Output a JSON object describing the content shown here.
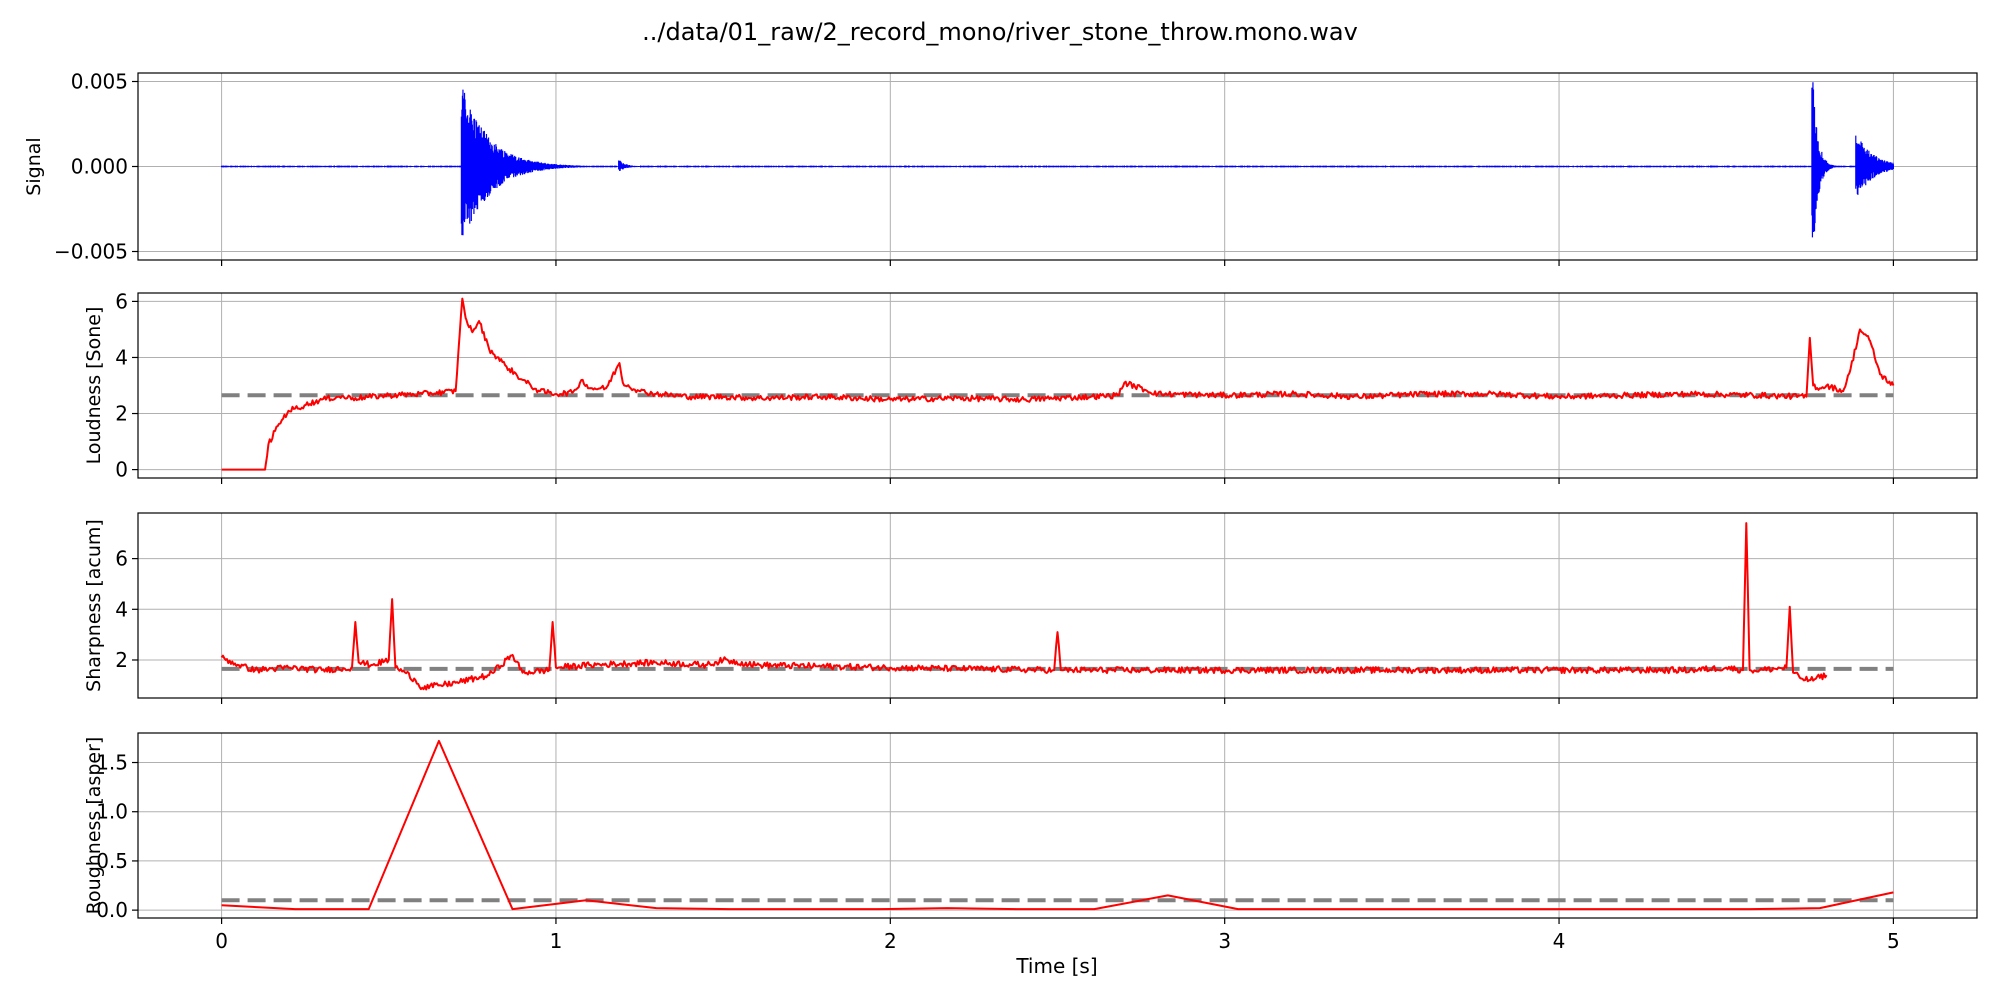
{
  "chart_data": {
    "title": "../data/01_raw/2_record_mono/river_stone_throw.mono.wav",
    "xlabel": "Time [s]",
    "x_ticks": [
      0,
      1,
      2,
      3,
      4,
      5
    ],
    "x_tick_labels": [
      "0",
      "1",
      "2",
      "3",
      "4",
      "5"
    ],
    "xlim": [
      -0.25,
      5.25
    ],
    "grid": true,
    "panels": [
      {
        "type": "line",
        "ylabel": "Signal",
        "ylim": [
          -0.0055,
          0.0055
        ],
        "y_ticks": [
          -0.005,
          0.0,
          0.005
        ],
        "y_tick_labels": [
          "−0.005",
          "0.000",
          "0.005"
        ],
        "series": [
          {
            "color": "#0000ff",
            "style": "waveform",
            "baseline_amplitude": 4e-05,
            "events": [
              {
                "t": 0.72,
                "peak": 0.0048,
                "trough": -0.0047,
                "decay": 0.08
              },
              {
                "t": 1.19,
                "peak": 0.0004,
                "trough": -0.0003,
                "decay": 0.02
              },
              {
                "t": 4.76,
                "peak": 0.005,
                "trough": -0.0051,
                "decay": 0.015
              },
              {
                "t": 4.89,
                "peak": 0.002,
                "trough": -0.0019,
                "decay": 0.05
              }
            ]
          }
        ]
      },
      {
        "type": "line",
        "ylabel": "Loudness [Sone]",
        "ylim": [
          -0.3,
          6.3
        ],
        "y_ticks": [
          0,
          2,
          4,
          6
        ],
        "y_tick_labels": [
          "0",
          "2",
          "4",
          "6"
        ],
        "mean": 2.65,
        "series": [
          {
            "color": "#ff0000",
            "x": [
              0,
              0.13,
              0.14,
              0.17,
              0.2,
              0.25,
              0.3,
              0.35,
              0.4,
              0.5,
              0.6,
              0.7,
              0.71,
              0.72,
              0.73,
              0.75,
              0.77,
              0.8,
              0.85,
              0.9,
              0.95,
              1.0,
              1.05,
              1.08,
              1.1,
              1.15,
              1.19,
              1.2,
              1.25,
              1.3,
              1.4,
              1.5,
              1.6,
              1.8,
              2.0,
              2.2,
              2.4,
              2.6,
              2.68,
              2.7,
              2.8,
              3.0,
              3.2,
              3.4,
              3.6,
              3.8,
              4.0,
              4.2,
              4.4,
              4.6,
              4.74,
              4.75,
              4.76,
              4.78,
              4.8,
              4.85,
              4.87,
              4.9,
              4.93,
              4.96,
              5.0
            ],
            "y": [
              0,
              0,
              0.9,
              1.6,
              2.1,
              2.3,
              2.5,
              2.6,
              2.55,
              2.65,
              2.7,
              2.8,
              4.5,
              6.1,
              5.4,
              4.9,
              5.3,
              4.3,
              3.7,
              3.2,
              2.8,
              2.7,
              2.75,
              3.2,
              2.9,
              2.9,
              3.8,
              3.1,
              2.8,
              2.7,
              2.6,
              2.6,
              2.55,
              2.6,
              2.5,
              2.55,
              2.5,
              2.6,
              2.65,
              3.1,
              2.7,
              2.65,
              2.7,
              2.6,
              2.7,
              2.7,
              2.6,
              2.65,
              2.7,
              2.65,
              2.6,
              4.7,
              3.0,
              2.9,
              3.0,
              2.8,
              3.5,
              5.0,
              4.6,
              3.4,
              3.0
            ],
            "noise": 0.1
          }
        ]
      },
      {
        "type": "line",
        "ylabel": "Sharpness [acum]",
        "ylim": [
          0.5,
          7.8
        ],
        "y_ticks": [
          2,
          4,
          6
        ],
        "y_tick_labels": [
          "2",
          "4",
          "6"
        ],
        "mean": 1.65,
        "series": [
          {
            "color": "#ff0000",
            "x": [
              0,
              0.05,
              0.1,
              0.2,
              0.3,
              0.39,
              0.4,
              0.41,
              0.45,
              0.5,
              0.51,
              0.52,
              0.55,
              0.58,
              0.6,
              0.65,
              0.7,
              0.8,
              0.87,
              0.9,
              0.98,
              0.99,
              1.0,
              1.1,
              1.3,
              1.45,
              1.5,
              1.6,
              2.0,
              2.49,
              2.5,
              2.51,
              2.8,
              3.2,
              3.6,
              4.0,
              4.4,
              4.5,
              4.55,
              4.56,
              4.57,
              4.6,
              4.68,
              4.69,
              4.7,
              4.72,
              4.75,
              4.8
            ],
            "y": [
              2.1,
              1.8,
              1.6,
              1.7,
              1.6,
              1.7,
              3.5,
              1.9,
              1.8,
              2.0,
              4.4,
              1.7,
              1.5,
              1.2,
              0.9,
              1.0,
              1.1,
              1.4,
              2.2,
              1.5,
              1.6,
              3.5,
              1.7,
              1.8,
              1.9,
              1.8,
              2.0,
              1.8,
              1.7,
              1.6,
              3.1,
              1.6,
              1.6,
              1.6,
              1.6,
              1.6,
              1.6,
              1.7,
              1.6,
              7.4,
              1.6,
              1.6,
              1.7,
              4.1,
              1.5,
              1.3,
              1.2,
              1.4
            ],
            "noise": 0.12
          }
        ]
      },
      {
        "type": "line",
        "ylabel": "Roughness [asper]",
        "ylim": [
          -0.08,
          1.8
        ],
        "y_ticks": [
          0.0,
          0.5,
          1.0,
          1.5
        ],
        "y_tick_labels": [
          "0.0",
          "0.5",
          "1.0",
          "1.5"
        ],
        "mean": 0.1,
        "series": [
          {
            "color": "#ff0000",
            "x": [
              0,
              0.22,
              0.44,
              0.65,
              0.87,
              1.09,
              1.3,
              1.52,
              1.74,
              1.96,
              2.17,
              2.39,
              2.61,
              2.83,
              3.04,
              3.26,
              3.48,
              3.7,
              3.91,
              4.13,
              4.35,
              4.57,
              4.78,
              5.0
            ],
            "y": [
              0.05,
              0.01,
              0.01,
              1.72,
              0.01,
              0.1,
              0.02,
              0.01,
              0.01,
              0.01,
              0.02,
              0.01,
              0.01,
              0.15,
              0.01,
              0.01,
              0.01,
              0.01,
              0.01,
              0.01,
              0.01,
              0.01,
              0.02,
              0.18
            ],
            "noise": 0
          }
        ]
      }
    ]
  }
}
